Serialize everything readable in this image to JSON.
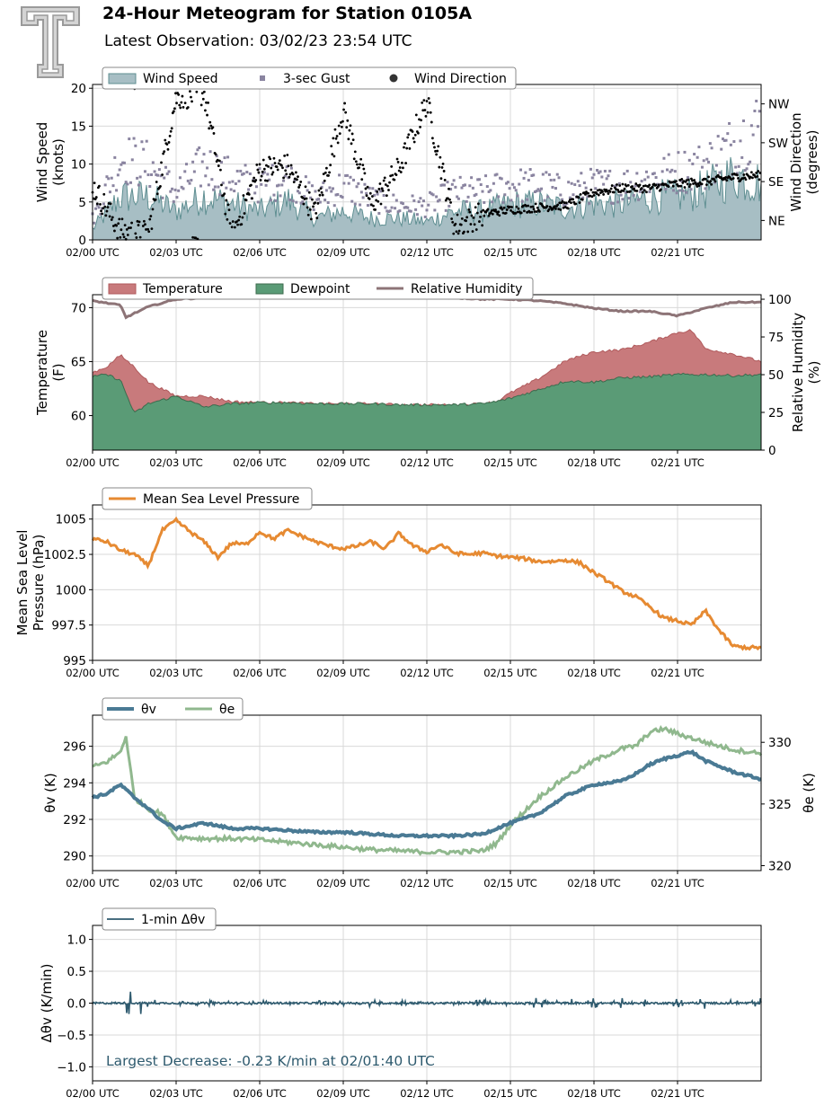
{
  "header": {
    "title": "24-Hour Meteogram for Station 0105A",
    "subtitle": "Latest Observation: 03/02/23 23:54 UTC"
  },
  "logo": {
    "icon": "texas-tech-double-t-logo-icon",
    "color": "#a8a8a8"
  },
  "x_axis": {
    "tick_labels": [
      "02/00 UTC",
      "02/03 UTC",
      "02/06 UTC",
      "02/09 UTC",
      "02/12 UTC",
      "02/15 UTC",
      "02/18 UTC",
      "02/21 UTC"
    ],
    "tick_hours": [
      0,
      3,
      6,
      9,
      12,
      15,
      18,
      21
    ],
    "xlim_hours": [
      0,
      24
    ]
  },
  "chart_data": [
    {
      "type": "area",
      "panel": "wind",
      "ylabel": "Wind Speed\n(knots)",
      "ylim": [
        0,
        20.5
      ],
      "yticks": [
        0,
        5,
        10,
        15,
        20
      ],
      "y2label": "Wind Direction\n(degrees)",
      "y2lim": [
        0,
        360
      ],
      "y2ticks": [
        {
          "label": "NE",
          "value": 45
        },
        {
          "label": "SE",
          "value": 135
        },
        {
          "label": "SW",
          "value": 225
        },
        {
          "label": "NW",
          "value": 315
        }
      ],
      "grid": true,
      "legend": "top-left",
      "series": [
        {
          "name": "Wind Speed",
          "style": "area",
          "color": "#a7bec4",
          "edge": "#5f8f92",
          "x": [
            0,
            1,
            2,
            3,
            4,
            5,
            6,
            7,
            8,
            9,
            10,
            11,
            12,
            13,
            14,
            15,
            16,
            17,
            18,
            19,
            20,
            21,
            22,
            23,
            24
          ],
          "y": [
            1.5,
            6,
            6,
            4,
            6,
            5,
            4,
            5.5,
            3,
            4,
            3,
            3,
            2.5,
            4,
            4,
            5,
            5,
            4.5,
            5,
            5,
            6,
            6,
            7,
            9,
            8
          ]
        },
        {
          "name": "3-sec Gust",
          "style": "scatter",
          "color": "#8a84a0",
          "x": [
            0,
            1,
            2,
            3,
            4,
            5,
            6,
            7,
            8,
            9,
            10,
            11,
            12,
            13,
            14,
            15,
            16,
            17,
            18,
            19,
            20,
            21,
            22,
            23,
            24
          ],
          "y": [
            3,
            12,
            11,
            7,
            11,
            9,
            8,
            9,
            6,
            8,
            6,
            5,
            5,
            7,
            7,
            8,
            8,
            7,
            8,
            8,
            9,
            10,
            11,
            14,
            17
          ]
        },
        {
          "name": "Wind Direction",
          "style": "scatter",
          "color": "#000000",
          "x": [
            0,
            1,
            2,
            3,
            4,
            5,
            6,
            7,
            8,
            9,
            10,
            11,
            12,
            13,
            14,
            15,
            16,
            17,
            18,
            19,
            20,
            21,
            22,
            23,
            24
          ],
          "y": [
            125,
            20,
            15,
            330,
            340,
            10,
            165,
            170,
            60,
            300,
            80,
            165,
            320,
            30,
            60,
            70,
            75,
            80,
            110,
            120,
            120,
            130,
            135,
            145,
            150
          ]
        }
      ]
    },
    {
      "type": "area",
      "panel": "temperature",
      "ylabel": "Temperature\n(F)",
      "ylim": [
        56.8,
        71.2
      ],
      "yticks": [
        60,
        65,
        70
      ],
      "y2label": "Relative Humidity\n(%)",
      "y2lim": [
        0,
        103
      ],
      "y2ticks": [
        0,
        25,
        50,
        75,
        100
      ],
      "grid": true,
      "legend": "top-left",
      "series": [
        {
          "name": "Temperature",
          "style": "area",
          "color": "#c87a7c",
          "edge": "#b05a5c",
          "x": [
            0,
            0.5,
            1,
            1.5,
            2,
            3,
            4,
            5,
            6,
            7,
            8,
            9,
            10,
            11,
            12,
            13,
            14,
            14.5,
            15,
            16,
            17,
            18,
            19,
            20,
            21,
            21.5,
            22,
            23,
            24
          ],
          "y": [
            64,
            64.5,
            65.6,
            64.5,
            63.1,
            61.8,
            61.8,
            61.3,
            61.2,
            61.2,
            61.1,
            61.1,
            61.1,
            61,
            61,
            61,
            61.1,
            61.3,
            62.1,
            63.4,
            65.1,
            65.9,
            66.1,
            66.8,
            67.7,
            67.9,
            66.2,
            65.7,
            65
          ]
        },
        {
          "name": "Dewpoint",
          "style": "area",
          "color": "#5a9b76",
          "edge": "#3e6b4e",
          "x": [
            0,
            0.5,
            1,
            1.5,
            2,
            3,
            4,
            5,
            6,
            7,
            8,
            9,
            10,
            11,
            12,
            13,
            14,
            14.5,
            15,
            16,
            17,
            18,
            19,
            20,
            21,
            22,
            23,
            24
          ],
          "y": [
            63.6,
            63.8,
            63.3,
            60.2,
            61.1,
            61.8,
            60.8,
            61.1,
            61.2,
            61.2,
            61.1,
            61.1,
            61.1,
            61,
            61,
            61,
            61.1,
            61.3,
            61.6,
            62.4,
            63.2,
            63.1,
            63.5,
            63.6,
            63.8,
            63.8,
            63.7,
            63.8
          ]
        },
        {
          "name": "Relative Humidity",
          "style": "line",
          "color": "#8d7477",
          "x": [
            0,
            1,
            1.2,
            2,
            3,
            4,
            5,
            6,
            7,
            8,
            9,
            10,
            11,
            12,
            13,
            14,
            15,
            16,
            17,
            18,
            19,
            20,
            21,
            22,
            23,
            24
          ],
          "y": [
            99,
            96,
            88,
            95,
            100,
            101,
            101,
            101,
            101,
            101,
            101,
            101,
            101,
            101,
            101,
            100,
            100,
            99,
            97,
            94,
            92,
            92,
            89,
            94,
            98,
            98
          ]
        }
      ]
    },
    {
      "type": "line",
      "panel": "pressure",
      "ylabel": "Mean Sea Level\nPressure (hPa)",
      "ylim": [
        995,
        1006
      ],
      "yticks": [
        995.0,
        997.5,
        1000.0,
        1002.5,
        1005.0
      ],
      "grid": true,
      "legend": "top-left",
      "series": [
        {
          "name": "Mean Sea Level Pressure",
          "color": "#e68a32",
          "x": [
            0,
            0.5,
            1,
            1.5,
            2,
            2.5,
            3,
            3.5,
            4,
            4.5,
            5,
            5.5,
            6,
            6.5,
            7,
            7.5,
            8,
            8.5,
            9,
            9.5,
            10,
            10.5,
            11,
            11.5,
            12,
            12.5,
            13,
            13.5,
            14,
            14.5,
            15,
            15.5,
            16,
            16.5,
            17,
            17.5,
            18,
            18.5,
            19,
            19.5,
            20,
            20.5,
            21,
            21.5,
            22,
            22.5,
            23,
            23.5,
            24
          ],
          "y": [
            1003.6,
            1003.4,
            1002.8,
            1002.5,
            1001.7,
            1004.2,
            1004.9,
            1004.1,
            1003.4,
            1002.3,
            1003.3,
            1003.2,
            1004.1,
            1003.6,
            1004.2,
            1003.8,
            1003.4,
            1003.1,
            1002.9,
            1003.1,
            1003.4,
            1002.9,
            1004.0,
            1003.1,
            1002.7,
            1003.2,
            1002.6,
            1002.5,
            1002.6,
            1002.4,
            1002.3,
            1002.2,
            1002.0,
            1002.0,
            1002.1,
            1001.9,
            1001.2,
            1000.6,
            999.9,
            999.5,
            998.8,
            998.0,
            997.8,
            997.5,
            998.5,
            997.1,
            996.0,
            995.9,
            995.9
          ]
        }
      ]
    },
    {
      "type": "line",
      "panel": "theta",
      "ylabel": "θv (K)",
      "ylim": [
        289.2,
        297.7
      ],
      "yticks": [
        290,
        292,
        294,
        296
      ],
      "y2label": "θe (K)",
      "y2lim": [
        319.6,
        332.2
      ],
      "y2ticks": [
        320,
        325,
        330
      ],
      "grid": true,
      "legend": "top-left",
      "series": [
        {
          "name": "θv",
          "color": "#4a7a94",
          "x": [
            0,
            0.5,
            1,
            1.5,
            2,
            2.5,
            3,
            4,
            5,
            6,
            7,
            8,
            9,
            10,
            11,
            12,
            13,
            14,
            14.5,
            15,
            16,
            17,
            18,
            19,
            19.5,
            20,
            20.5,
            21,
            21.5,
            22,
            23,
            24
          ],
          "y": [
            293.2,
            293.4,
            293.9,
            293.2,
            292.6,
            291.9,
            291.5,
            291.8,
            291.5,
            291.5,
            291.4,
            291.3,
            291.3,
            291.2,
            291.1,
            291.1,
            291.1,
            291.2,
            291.5,
            291.8,
            292.3,
            293.3,
            293.9,
            294.1,
            294.5,
            295,
            295.3,
            295.5,
            295.7,
            295.2,
            294.6,
            294.2
          ]
        },
        {
          "name": "θe",
          "color": "#90b88e",
          "x": [
            0,
            0.5,
            1,
            1.2,
            1.5,
            2,
            2.5,
            3,
            4,
            5,
            6,
            7,
            8,
            9,
            10,
            11,
            12,
            13,
            14,
            14.5,
            15,
            16,
            17,
            18,
            19,
            19.5,
            20,
            20.5,
            21,
            22,
            23,
            24
          ],
          "y": [
            328,
            328.4,
            329.2,
            330.5,
            325.5,
            324.6,
            324.2,
            322.3,
            322.2,
            322.2,
            322.1,
            321.9,
            321.7,
            321.5,
            321.3,
            321.2,
            321.1,
            321.1,
            321.2,
            321.8,
            323.3,
            325.5,
            327.2,
            328.5,
            329.5,
            329.7,
            330.8,
            331.1,
            330.7,
            330,
            329.4,
            329.1
          ]
        }
      ]
    },
    {
      "type": "line",
      "panel": "dtheta",
      "ylabel": "Δθv (K/min)",
      "ylim": [
        -1.22,
        1.22
      ],
      "yticks": [
        {
          "label": "−1.0",
          "value": -1.0
        },
        {
          "label": "−0.5",
          "value": -0.5
        },
        {
          "label": "0.0",
          "value": 0.0
        },
        {
          "label": "0.5",
          "value": 0.5
        },
        {
          "label": "1.0",
          "value": 1.0
        }
      ],
      "grid": true,
      "legend": "top-left",
      "annotation": "Largest Decrease: -0.23 K/min at 02/01:40 UTC",
      "series": [
        {
          "name": "1-min Δθv",
          "color": "#2e5a6e",
          "x": [
            0,
            0.5,
            0.9,
            1,
            1.67,
            2,
            3,
            4,
            5,
            6,
            7,
            8,
            9,
            10,
            11,
            12,
            13,
            14,
            15,
            16,
            17,
            18,
            19,
            20,
            21,
            22,
            23,
            24
          ],
          "y": [
            0,
            0.05,
            0.2,
            -0.12,
            -0.23,
            0.08,
            -0.05,
            0.06,
            -0.04,
            0.05,
            -0.03,
            0.05,
            -0.04,
            0.06,
            -0.05,
            0.04,
            -0.03,
            0.06,
            -0.05,
            0.09,
            -0.1,
            0.08,
            -0.08,
            0.08,
            -0.07,
            0.09,
            -0.06,
            0.08
          ]
        }
      ]
    }
  ]
}
